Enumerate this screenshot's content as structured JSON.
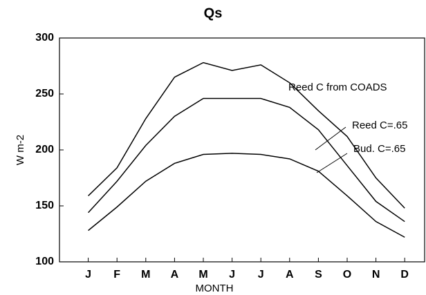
{
  "chart_data": {
    "type": "line",
    "title": "Qs",
    "xlabel": "MONTH",
    "ylabel": "W m-2",
    "categories": [
      "J",
      "F",
      "M",
      "A",
      "M",
      "J",
      "J",
      "A",
      "S",
      "O",
      "N",
      "D"
    ],
    "series": [
      {
        "name": "Reed C from COADS",
        "color": "#000000",
        "values": [
          159,
          184,
          228,
          265,
          278,
          271,
          276,
          260,
          235,
          212,
          175,
          148
        ]
      },
      {
        "name": "Reed C=.65",
        "color": "#000000",
        "values": [
          144,
          172,
          204,
          230,
          246,
          246,
          246,
          238,
          218,
          186,
          154,
          136
        ]
      },
      {
        "name": "Bud. C=.65",
        "color": "#000000",
        "values": [
          128,
          149,
          172,
          188,
          196,
          197,
          196,
          192,
          181,
          159,
          136,
          122
        ]
      }
    ],
    "ylim": [
      100,
      300
    ],
    "yticks": [
      100,
      150,
      200,
      250,
      300
    ],
    "grid": false
  }
}
